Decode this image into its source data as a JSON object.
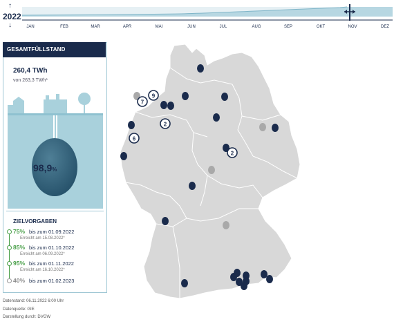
{
  "timeline": {
    "year": "2022",
    "months": [
      "JAN",
      "FEB",
      "MAR",
      "APR",
      "MAI",
      "JUN",
      "JUL",
      "AUG",
      "SEP",
      "OKT",
      "NOV",
      "DEZ"
    ],
    "selected_month": "NOV"
  },
  "panel": {
    "header": "GESAMTFÜLLSTAND",
    "twh_value": "260,4 TWh",
    "twh_capacity": "von 263,3 TWh*",
    "fill_percent_value": "98,9",
    "fill_percent_unit": "%",
    "fill_fraction": 0.989,
    "targets_header": "ZIELVORGABEN",
    "targets": [
      {
        "percent": "75%",
        "date": "bis zum 01.09.2022",
        "reached": "Erreicht am 15.08.2022*",
        "status": "reached"
      },
      {
        "percent": "85%",
        "date": "bis zum 01.10.2022",
        "reached": "Erreicht am 06.09.2022*",
        "status": "reached"
      },
      {
        "percent": "95%",
        "date": "bis zum 01.11.2022",
        "reached": "Erreicht am 16.10.2022*",
        "status": "reached"
      },
      {
        "percent": "40%",
        "date": "bis zum 01.02.2023",
        "reached": "",
        "status": "pending"
      }
    ]
  },
  "map": {
    "cluster_labels": [
      "9",
      "7",
      "2",
      "6",
      "2"
    ],
    "colors": {
      "marker": "#1a2b4c",
      "inactive": "#a9a9a9",
      "land": "#d8d8d8"
    }
  },
  "footer": {
    "date": "Datenstand: 06.11.2022 6:00 Uhr",
    "source": "Datenquelle: GIE",
    "author": "Darstellung durch: DVGW"
  }
}
